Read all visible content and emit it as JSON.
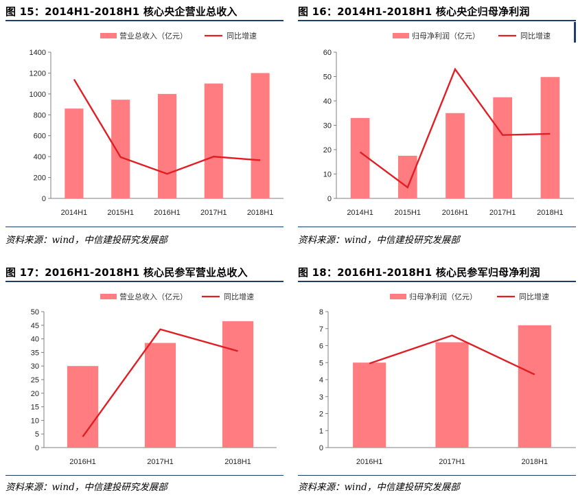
{
  "panels": [
    {
      "title": "图 15：2014H1-2018H1 核心央企营业总收入",
      "source": "资料来源：wind，中信建投研究发展部",
      "chart_data": {
        "type": "bar",
        "categories": [
          "2014H1",
          "2015H1",
          "2016H1",
          "2017H1",
          "2018H1"
        ],
        "series": [
          {
            "name": "营业总收入（亿元）",
            "type": "bar",
            "values": [
              860,
              945,
              1000,
              1100,
              1200
            ]
          },
          {
            "name": "同比增速",
            "type": "line",
            "values": [
              1140,
              395,
              235,
              400,
              365
            ]
          }
        ],
        "ylim": [
          0,
          1400
        ],
        "yticks": [
          0,
          200,
          400,
          600,
          800,
          1000,
          1200,
          1400
        ],
        "legend": "top-center",
        "grid": false
      }
    },
    {
      "title": "图 16：2014H1-2018H1 核心央企归母净利润",
      "source": "资料来源：wind，中信建投研究发展部",
      "chart_data": {
        "type": "bar",
        "categories": [
          "2014H1",
          "2015H1",
          "2016H1",
          "2017H1",
          "2018H1"
        ],
        "series": [
          {
            "name": "归母净利润（亿元）",
            "type": "bar",
            "values": [
              33,
              17.5,
              35,
              41.5,
              49.8
            ]
          },
          {
            "name": "同比增速",
            "type": "line",
            "values": [
              19,
              4.5,
              53,
              26,
              26.5
            ]
          }
        ],
        "ylim": [
          0,
          60
        ],
        "yticks": [
          0,
          10,
          20,
          30,
          40,
          50,
          60
        ],
        "legend": "top-center",
        "grid": false
      }
    },
    {
      "title": "图 17：2016H1-2018H1 核心民参军营业总收入",
      "source": "资料来源：wind，中信建投研究发展部",
      "chart_data": {
        "type": "bar",
        "categories": [
          "2016H1",
          "2017H1",
          "2018H1"
        ],
        "series": [
          {
            "name": "营业总收入（亿元）",
            "type": "bar",
            "values": [
              30,
              38.5,
              46.5
            ]
          },
          {
            "name": "同比增速",
            "type": "line",
            "values": [
              4,
              43.5,
              35.5
            ]
          }
        ],
        "ylim": [
          0,
          50
        ],
        "yticks": [
          0,
          5,
          10,
          15,
          20,
          25,
          30,
          35,
          40,
          45,
          50
        ],
        "legend": "top-center",
        "grid": false
      }
    },
    {
      "title": "图 18：2016H1-2018H1 核心民参军归母净利润",
      "source": "资料来源：wind，中信建投研究发展部",
      "chart_data": {
        "type": "bar",
        "categories": [
          "2016H1",
          "2017H1",
          "2018H1"
        ],
        "series": [
          {
            "name": "归母净利润（亿元）",
            "type": "bar",
            "values": [
              5,
              6.2,
              7.2
            ]
          },
          {
            "name": "同比增速",
            "type": "line",
            "values": [
              4.95,
              6.6,
              4.3
            ]
          }
        ],
        "ylim": [
          0,
          8
        ],
        "yticks": [
          0,
          1,
          2,
          3,
          4,
          5,
          6,
          7,
          8
        ],
        "legend": "top-center",
        "grid": false
      }
    }
  ],
  "colors": {
    "bar": "#ff7c80",
    "line": "#e01e24",
    "axis": "#7f7f7f",
    "rule": "#1f3d6b"
  }
}
